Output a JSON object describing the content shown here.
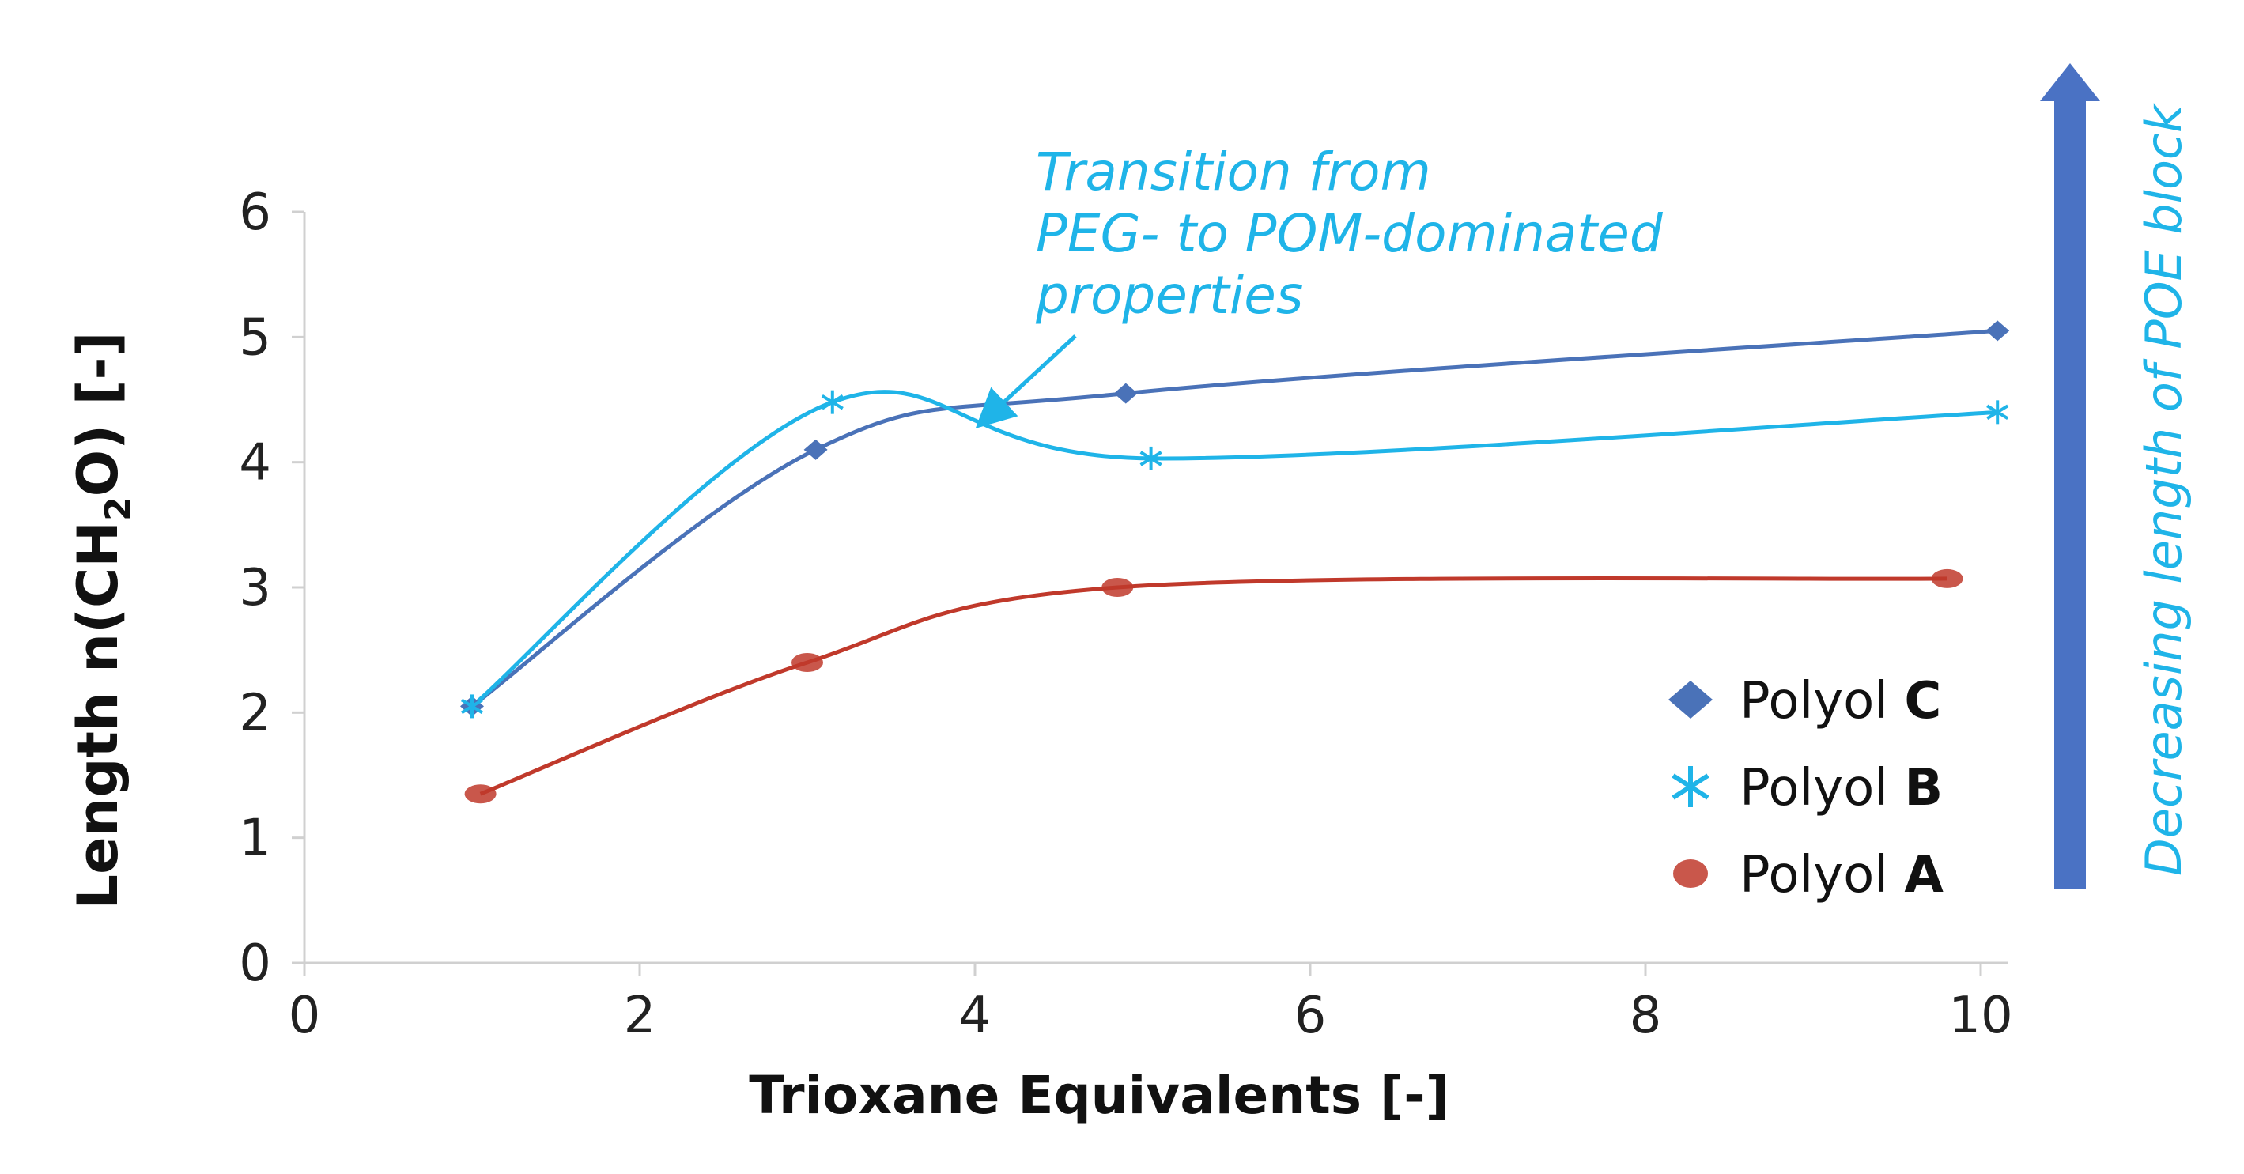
{
  "chart_data": {
    "type": "line",
    "title": "",
    "xlabel": "Trioxane Equivalents [-]",
    "ylabel_main": "Length n(CH",
    "ylabel_sub1": "2",
    "ylabel_mid": "O)",
    "ylabel_end": " [-]",
    "xlim": [
      0,
      10
    ],
    "ylim": [
      0,
      6
    ],
    "xticks": [
      "0",
      "2",
      "4",
      "6",
      "8",
      "10"
    ],
    "yticks": [
      "0",
      "1",
      "2",
      "3",
      "4",
      "5",
      "6"
    ],
    "grid": false,
    "legend_position": "bottom-right",
    "series": [
      {
        "name": "Polyol C",
        "legend_prefix": "Polyol ",
        "legend_bold": "C",
        "marker": "diamond",
        "color": "#4a72b8",
        "x": [
          1.0,
          3.05,
          4.9,
          10.1
        ],
        "y": [
          2.05,
          4.1,
          4.55,
          5.05
        ]
      },
      {
        "name": "Polyol B",
        "legend_prefix": "Polyol ",
        "legend_bold": "B",
        "marker": "asterisk",
        "color": "#1fb4e8",
        "x": [
          1.0,
          3.15,
          5.05,
          10.1
        ],
        "y": [
          2.05,
          4.48,
          4.03,
          4.4
        ]
      },
      {
        "name": "Polyol A",
        "legend_prefix": "Polyol ",
        "legend_bold": "A",
        "marker": "circle",
        "color": "#c0392b",
        "x": [
          1.05,
          3.0,
          4.85,
          9.8
        ],
        "y": [
          1.35,
          2.4,
          3.0,
          3.07
        ]
      }
    ],
    "annotation": {
      "lines": [
        "Transition from",
        "PEG- to POM-dominated",
        "properties"
      ]
    },
    "side_arrow_label": "Decreasing length of POE block",
    "arrow_color": "#4a72c4"
  }
}
